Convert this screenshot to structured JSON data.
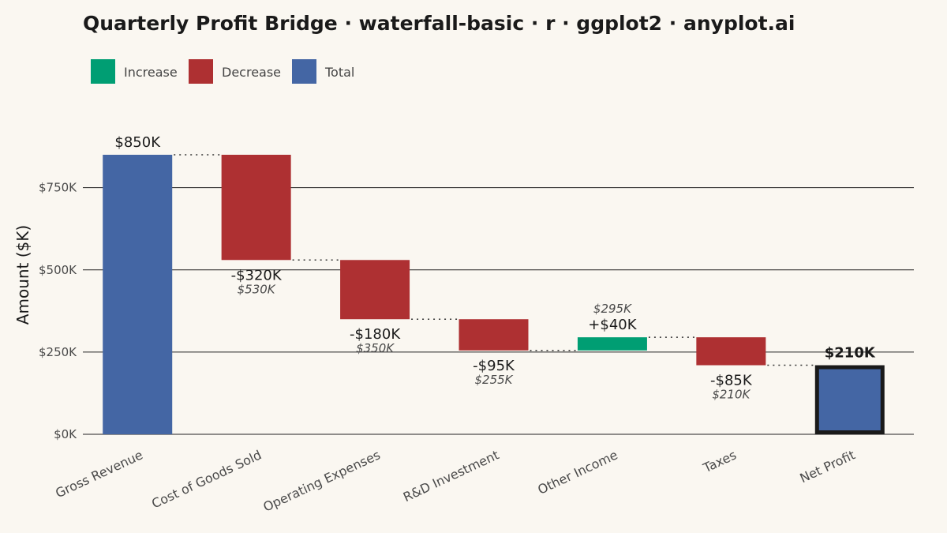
{
  "chart_data": {
    "type": "bar",
    "subtype": "waterfall",
    "title": "Quarterly Profit Bridge · waterfall-basic · r · ggplot2 · anyplot.ai",
    "ylabel": "Amount ($K)",
    "xlabel": "",
    "ylim": [
      0,
      850
    ],
    "yticks": [
      0,
      250,
      500,
      750
    ],
    "ytick_labels": [
      "$0K",
      "$250K",
      "$500K",
      "$750K"
    ],
    "grid": "horizontal",
    "legend_position": "top-left",
    "legend": [
      {
        "key": "increase",
        "label": "Increase",
        "color": "#009E73"
      },
      {
        "key": "decrease",
        "label": "Decrease",
        "color": "#AE3032"
      },
      {
        "key": "total",
        "label": "Total",
        "color": "#4466A4"
      }
    ],
    "categories": [
      "Gross Revenue",
      "Cost of Goods Sold",
      "Operating Expenses",
      "R&D Investment",
      "Other Income",
      "Taxes",
      "Net Profit"
    ],
    "bars": [
      {
        "category": "Gross Revenue",
        "kind": "total",
        "start": 0,
        "end": 850,
        "label": "$850K",
        "running_label": ""
      },
      {
        "category": "Cost of Goods Sold",
        "kind": "decrease",
        "start": 850,
        "end": 530,
        "label": "-$320K",
        "running_label": "$530K"
      },
      {
        "category": "Operating Expenses",
        "kind": "decrease",
        "start": 530,
        "end": 350,
        "label": "-$180K",
        "running_label": "$350K"
      },
      {
        "category": "R&D Investment",
        "kind": "decrease",
        "start": 350,
        "end": 255,
        "label": "-$95K",
        "running_label": "$255K"
      },
      {
        "category": "Other Income",
        "kind": "increase",
        "start": 255,
        "end": 295,
        "label": "+$40K",
        "running_label": "$295K"
      },
      {
        "category": "Taxes",
        "kind": "decrease",
        "start": 295,
        "end": 210,
        "label": "-$85K",
        "running_label": "$210K"
      },
      {
        "category": "Net Profit",
        "kind": "total",
        "start": 0,
        "end": 210,
        "label": "$210K",
        "running_label": "",
        "highlight": true
      }
    ]
  },
  "colors": {
    "background": "#FAF7F1",
    "increase": "#009E73",
    "decrease": "#AE3032",
    "total": "#4466A4",
    "highlight_border": "#1a1a1a"
  }
}
